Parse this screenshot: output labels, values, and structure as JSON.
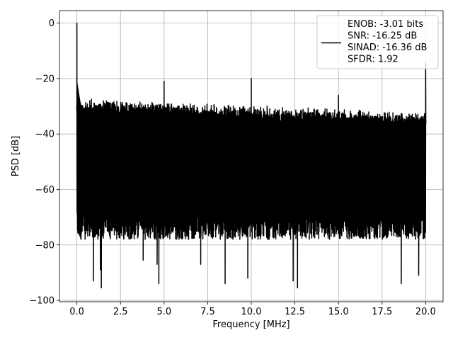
{
  "chart_data": {
    "type": "line",
    "xlabel": "Frequency [MHz]",
    "ylabel": "PSD [dB]",
    "xlim": [
      -1.0,
      21.0
    ],
    "ylim": [
      -100.5,
      4.5
    ],
    "xticks": [
      0.0,
      2.5,
      5.0,
      7.5,
      10.0,
      12.5,
      15.0,
      17.5,
      20.0
    ],
    "xtick_labels": [
      "0.0",
      "2.5",
      "5.0",
      "7.5",
      "10.0",
      "12.5",
      "15.0",
      "17.5",
      "20.0"
    ],
    "yticks": [
      0,
      -20,
      -40,
      -60,
      -80,
      -100
    ],
    "ytick_labels": [
      "0",
      "−20",
      "−40",
      "−60",
      "−80",
      "−100"
    ],
    "grid": true,
    "line_color": "#000000",
    "legend": {
      "placement": "top-right",
      "lines": [
        "ENOB: -3.01 bits",
        "SNR: -16.25 dB",
        "SINAD: -16.36 dB",
        "SFDR: 1.92"
      ]
    },
    "series": [
      {
        "x_range": [
          0.0,
          20.0
        ],
        "noise_top_start": -28.5,
        "noise_top_end": -33.5,
        "noise_floor_typical": -75,
        "peaks": [
          {
            "x": 0.0,
            "y": 0
          },
          {
            "x": 5.0,
            "y": -21
          },
          {
            "x": 10.0,
            "y": -20
          },
          {
            "x": 15.0,
            "y": -26
          },
          {
            "x": 20.0,
            "y": -14.5
          }
        ],
        "deep_dips": [
          {
            "x": 0.95,
            "y": -93
          },
          {
            "x": 1.4,
            "y": -95.5
          },
          {
            "x": 1.35,
            "y": -89
          },
          {
            "x": 3.8,
            "y": -85.5
          },
          {
            "x": 4.6,
            "y": -87
          },
          {
            "x": 4.7,
            "y": -94
          },
          {
            "x": 7.1,
            "y": -87
          },
          {
            "x": 8.5,
            "y": -94
          },
          {
            "x": 9.8,
            "y": -92
          },
          {
            "x": 12.4,
            "y": -93
          },
          {
            "x": 12.65,
            "y": -95.5
          },
          {
            "x": 18.6,
            "y": -94
          },
          {
            "x": 19.6,
            "y": -91
          }
        ]
      }
    ]
  }
}
